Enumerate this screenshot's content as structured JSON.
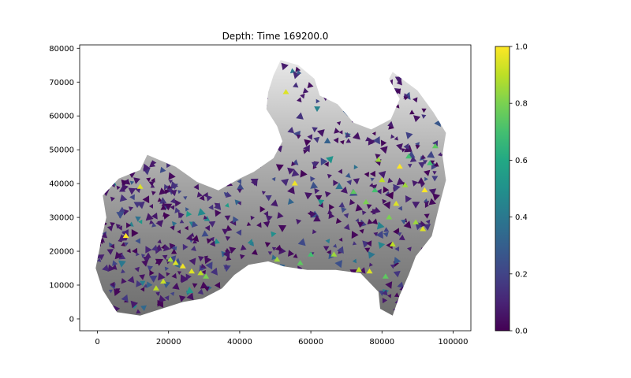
{
  "chart_data": {
    "type": "heatmap",
    "title": "Depth: Time 169200.0",
    "xlabel": "",
    "ylabel": "",
    "xlim": [
      -5000,
      105000
    ],
    "ylim": [
      -3500,
      81000
    ],
    "x_ticks": [
      0,
      20000,
      40000,
      60000,
      80000,
      100000
    ],
    "x_tick_labels": [
      "0",
      "20000",
      "40000",
      "60000",
      "80000",
      "100000"
    ],
    "y_ticks": [
      0,
      10000,
      20000,
      30000,
      40000,
      50000,
      60000,
      70000,
      80000
    ],
    "y_tick_labels": [
      "0",
      "10000",
      "20000",
      "30000",
      "40000",
      "50000",
      "60000",
      "70000",
      "80000"
    ],
    "colorbar": {
      "colormap": "viridis",
      "range": [
        0.0,
        1.0
      ],
      "ticks": [
        0.0,
        0.2,
        0.4,
        0.6,
        0.8,
        1.0
      ],
      "tick_labels": [
        "0.0",
        "0.2",
        "0.4",
        "0.6",
        "0.8",
        "1.0"
      ]
    },
    "background": "grayscale terrain (light at north, dark in channels)",
    "grid": false,
    "domain_outline": [
      [
        1000,
        23000
      ],
      [
        2500,
        30000
      ],
      [
        1500,
        36500
      ],
      [
        6000,
        41500
      ],
      [
        12000,
        44000
      ],
      [
        14000,
        48500
      ],
      [
        18500,
        46500
      ],
      [
        22000,
        45000
      ],
      [
        28000,
        40500
      ],
      [
        34000,
        38000
      ],
      [
        40000,
        41500
      ],
      [
        44000,
        43500
      ],
      [
        49500,
        47500
      ],
      [
        52000,
        52500
      ],
      [
        50500,
        57000
      ],
      [
        47500,
        62000
      ],
      [
        48000,
        67000
      ],
      [
        49500,
        72000
      ],
      [
        51500,
        76500
      ],
      [
        56500,
        75000
      ],
      [
        61000,
        71000
      ],
      [
        62500,
        66000
      ],
      [
        67500,
        63500
      ],
      [
        72000,
        58000
      ],
      [
        77000,
        56000
      ],
      [
        82500,
        59000
      ],
      [
        85000,
        65000
      ],
      [
        82000,
        71000
      ],
      [
        83000,
        73000
      ],
      [
        90000,
        67500
      ],
      [
        94500,
        61000
      ],
      [
        98000,
        55000
      ],
      [
        97000,
        48500
      ],
      [
        98000,
        41000
      ],
      [
        96000,
        33000
      ],
      [
        94000,
        24500
      ],
      [
        89500,
        18500
      ],
      [
        87500,
        13000
      ],
      [
        85000,
        7000
      ],
      [
        83000,
        1000
      ],
      [
        79500,
        3000
      ],
      [
        79000,
        8000
      ],
      [
        74000,
        13500
      ],
      [
        67000,
        14500
      ],
      [
        59000,
        14500
      ],
      [
        52500,
        15500
      ],
      [
        48000,
        17000
      ],
      [
        42500,
        16000
      ],
      [
        38500,
        13000
      ],
      [
        35000,
        9000
      ],
      [
        29500,
        6000
      ],
      [
        24000,
        5000
      ],
      [
        18000,
        3000
      ],
      [
        12000,
        1000
      ],
      [
        5500,
        2000
      ],
      [
        1500,
        8500
      ],
      [
        -500,
        15000
      ]
    ],
    "channel_highlights": [
      {
        "x": 8000,
        "y": 24500,
        "value": 1.0
      },
      {
        "x": 12000,
        "y": 39000,
        "value": 0.95
      },
      {
        "x": 16500,
        "y": 9000,
        "value": 0.9
      },
      {
        "x": 18500,
        "y": 11000,
        "value": 0.92
      },
      {
        "x": 20500,
        "y": 17500,
        "value": 0.85
      },
      {
        "x": 22000,
        "y": 16500,
        "value": 0.95
      },
      {
        "x": 24000,
        "y": 15500,
        "value": 0.98
      },
      {
        "x": 26500,
        "y": 14000,
        "value": 0.95
      },
      {
        "x": 29000,
        "y": 13500,
        "value": 0.9
      },
      {
        "x": 30500,
        "y": 12500,
        "value": 0.8
      },
      {
        "x": 50500,
        "y": 17500,
        "value": 0.85
      },
      {
        "x": 53000,
        "y": 67000,
        "value": 0.95
      },
      {
        "x": 55500,
        "y": 40000,
        "value": 0.98
      },
      {
        "x": 57000,
        "y": 16500,
        "value": 0.75
      },
      {
        "x": 60000,
        "y": 19000,
        "value": 0.7
      },
      {
        "x": 66500,
        "y": 19000,
        "value": 0.85
      },
      {
        "x": 72000,
        "y": 37500,
        "value": 0.75
      },
      {
        "x": 73500,
        "y": 14500,
        "value": 0.9
      },
      {
        "x": 75500,
        "y": 34500,
        "value": 0.8
      },
      {
        "x": 76500,
        "y": 14000,
        "value": 0.95
      },
      {
        "x": 78000,
        "y": 38000,
        "value": 0.7
      },
      {
        "x": 79000,
        "y": 47000,
        "value": 0.85
      },
      {
        "x": 80000,
        "y": 41000,
        "value": 0.9
      },
      {
        "x": 81000,
        "y": 12500,
        "value": 0.75
      },
      {
        "x": 82000,
        "y": 30000,
        "value": 0.8
      },
      {
        "x": 83000,
        "y": 22000,
        "value": 0.9
      },
      {
        "x": 84000,
        "y": 34000,
        "value": 0.95
      },
      {
        "x": 85000,
        "y": 45000,
        "value": 1.0
      },
      {
        "x": 86500,
        "y": 39500,
        "value": 0.85
      },
      {
        "x": 87500,
        "y": 48000,
        "value": 0.7
      },
      {
        "x": 89500,
        "y": 28500,
        "value": 0.85
      },
      {
        "x": 91500,
        "y": 26500,
        "value": 0.95
      },
      {
        "x": 92000,
        "y": 38000,
        "value": 1.0
      },
      {
        "x": 93500,
        "y": 46000,
        "value": 0.7
      },
      {
        "x": 95000,
        "y": 51000,
        "value": 0.75
      }
    ]
  }
}
